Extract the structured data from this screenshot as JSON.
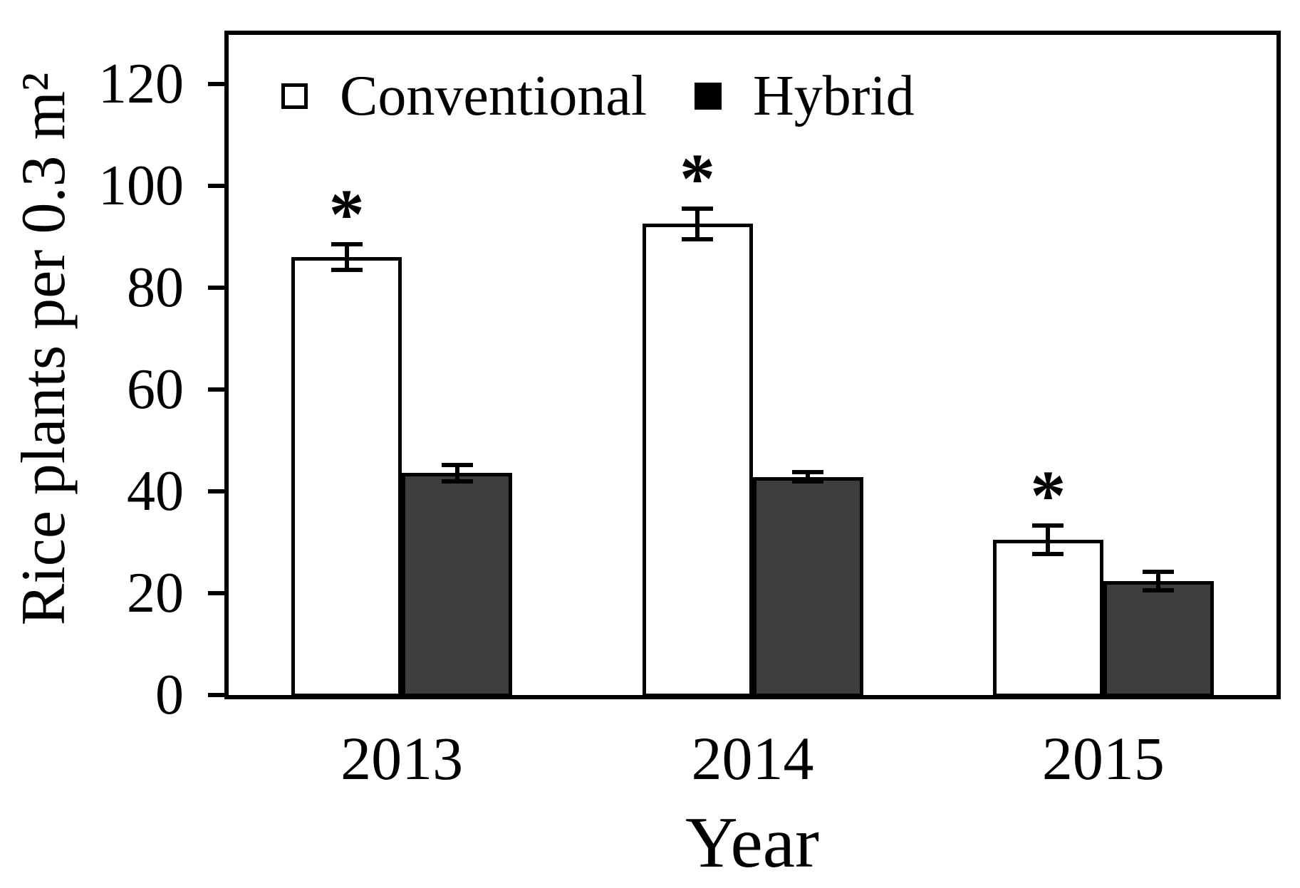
{
  "chart_data": {
    "type": "bar",
    "title": "",
    "categories": [
      "2013",
      "2014",
      "2015"
    ],
    "series": [
      {
        "name": "Conventional",
        "fill": "#ffffff",
        "values": [
          86,
          92.5,
          30.5
        ],
        "errors": [
          2.5,
          3,
          2.8
        ],
        "significant": [
          true,
          true,
          true
        ]
      },
      {
        "name": "Hybrid",
        "fill": "#3d3d3d",
        "values": [
          43.6,
          42.8,
          22.4
        ],
        "errors": [
          1.6,
          0.9,
          1.8
        ],
        "significant": [
          false,
          false,
          false
        ]
      }
    ],
    "significance_marker": "*",
    "xlabel": "Year",
    "ylabel": "Rice plants per 0.3 m²",
    "ylim": [
      0,
      130
    ],
    "yticks": [
      0,
      20,
      40,
      60,
      80,
      100,
      120
    ],
    "grid": false,
    "legend_position": "top-inside",
    "colors": {
      "axis": "#000000",
      "bar_border": "#000000",
      "conventional_fill": "#ffffff",
      "hybrid_fill": "#3d3d3d",
      "text": "#000000"
    }
  }
}
